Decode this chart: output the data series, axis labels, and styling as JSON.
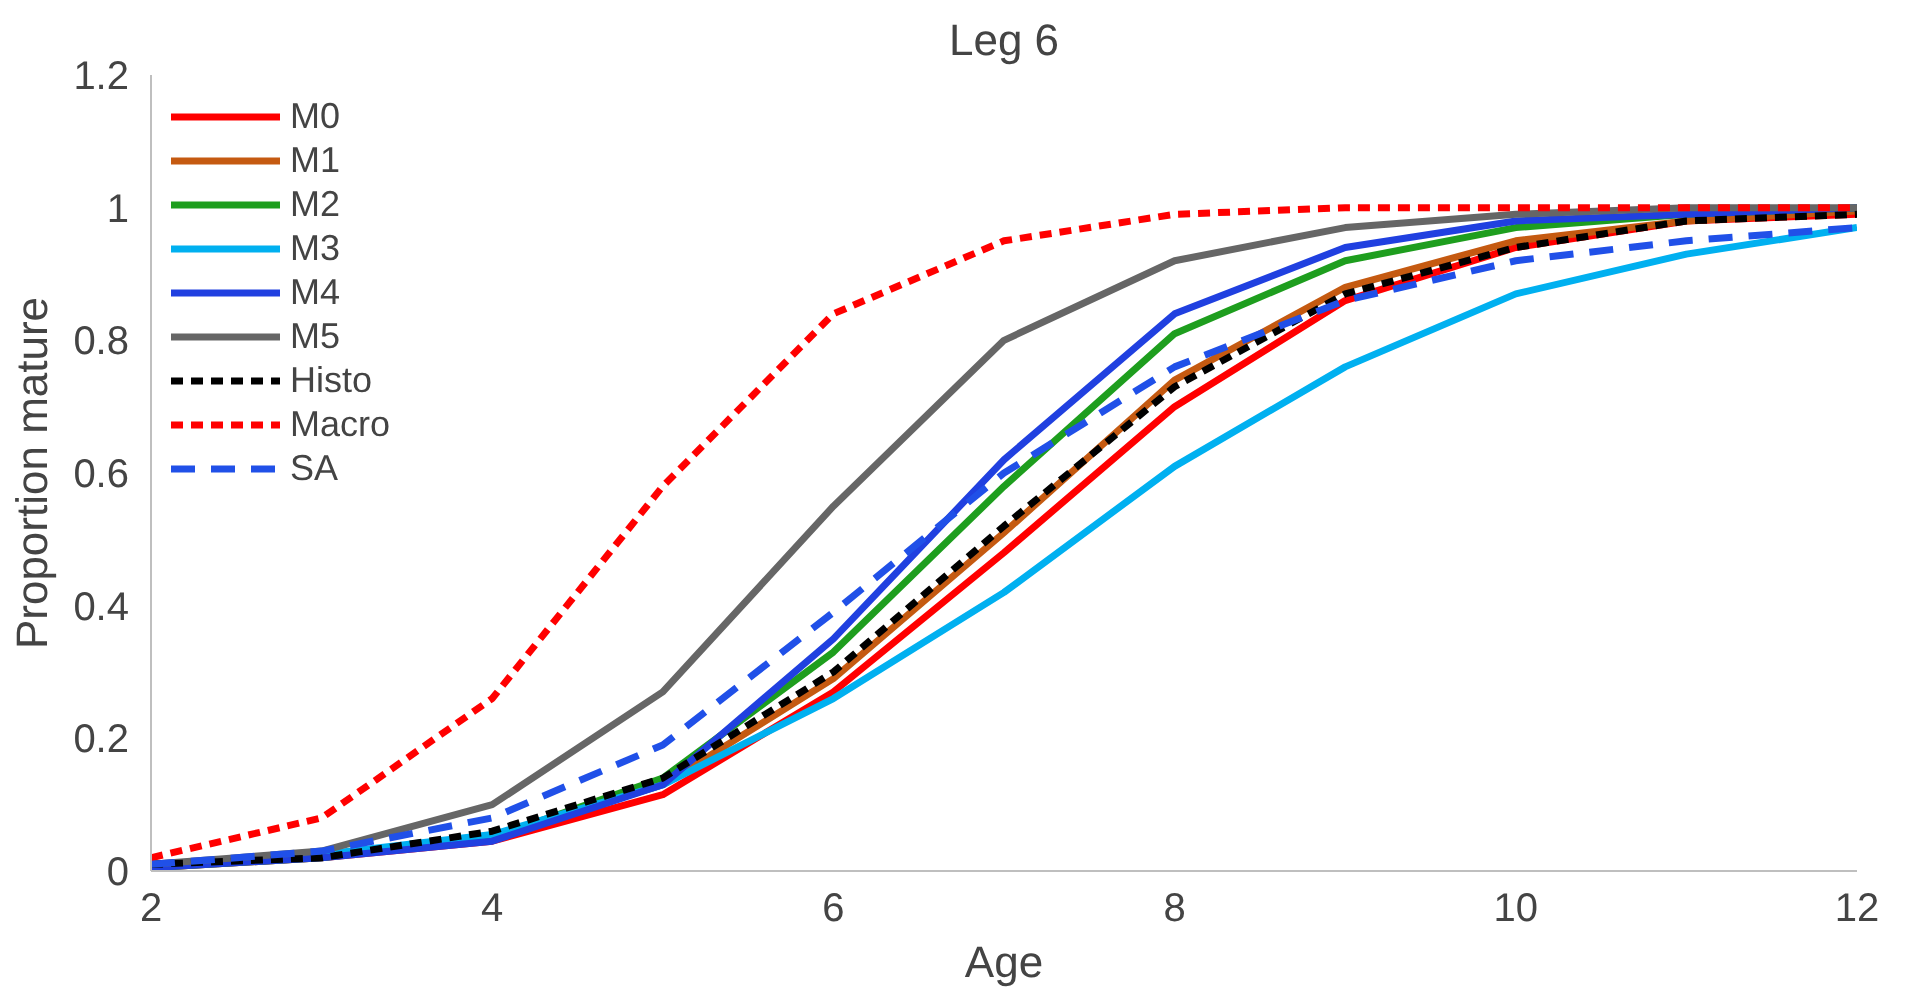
{
  "chart_data": {
    "type": "line",
    "title": "Leg 6",
    "xlabel": "Age",
    "ylabel": "Proportion mature",
    "x": [
      2,
      3,
      4,
      5,
      6,
      7,
      8,
      9,
      10,
      11,
      12
    ],
    "xlim": [
      2,
      12
    ],
    "xticks": [
      2,
      4,
      6,
      8,
      10,
      12
    ],
    "ylim": [
      0,
      1.2
    ],
    "yticks": [
      0,
      0.2,
      0.4,
      0.6,
      0.8,
      1,
      1.2
    ],
    "grid": false,
    "legend": "top left",
    "marker": "none",
    "series": [
      {
        "name": "M0",
        "color": "#ff0000",
        "line_style": "solid",
        "values": [
          0.005,
          0.02,
          0.045,
          0.115,
          0.27,
          0.48,
          0.7,
          0.86,
          0.94,
          0.98,
          0.99
        ]
      },
      {
        "name": "M1",
        "color": "#c55a11",
        "line_style": "solid",
        "values": [
          null,
          null,
          0.05,
          0.13,
          0.29,
          0.51,
          0.74,
          0.88,
          0.95,
          0.98,
          0.995
        ]
      },
      {
        "name": "M2",
        "color": "#1e9e1e",
        "line_style": "solid",
        "values": [
          0.005,
          0.02,
          0.05,
          0.14,
          0.33,
          0.58,
          0.81,
          0.92,
          0.97,
          0.99,
          1.0
        ]
      },
      {
        "name": "M3",
        "color": "#00b0f0",
        "line_style": "solid",
        "values": [
          0.01,
          0.025,
          0.055,
          0.13,
          0.26,
          0.42,
          0.61,
          0.76,
          0.87,
          0.93,
          0.97
        ]
      },
      {
        "name": "M4",
        "color": "#2040e0",
        "line_style": "solid",
        "values": [
          0.005,
          0.02,
          0.045,
          0.13,
          0.35,
          0.62,
          0.84,
          0.94,
          0.98,
          0.99,
          1.0
        ]
      },
      {
        "name": "M5",
        "color": "#666666",
        "line_style": "solid",
        "values": [
          0.01,
          0.03,
          0.1,
          0.27,
          0.55,
          0.8,
          0.92,
          0.97,
          0.99,
          1.0,
          1.0
        ]
      },
      {
        "name": "Histo",
        "color": "#000000",
        "line_style": "dotted",
        "values": [
          0.01,
          0.02,
          0.06,
          0.14,
          0.3,
          0.52,
          0.73,
          0.87,
          0.94,
          0.98,
          0.99
        ]
      },
      {
        "name": "Macro",
        "color": "#ff0000",
        "line_style": "dotted",
        "values": [
          0.02,
          0.08,
          0.26,
          0.58,
          0.84,
          0.95,
          0.99,
          1.0,
          1.0,
          1.0,
          1.0
        ]
      },
      {
        "name": "SA",
        "color": "#2050e8",
        "line_style": "dashed",
        "values": [
          0.01,
          0.03,
          0.08,
          0.19,
          0.39,
          0.6,
          0.76,
          0.86,
          0.92,
          0.95,
          0.97
        ]
      }
    ]
  }
}
